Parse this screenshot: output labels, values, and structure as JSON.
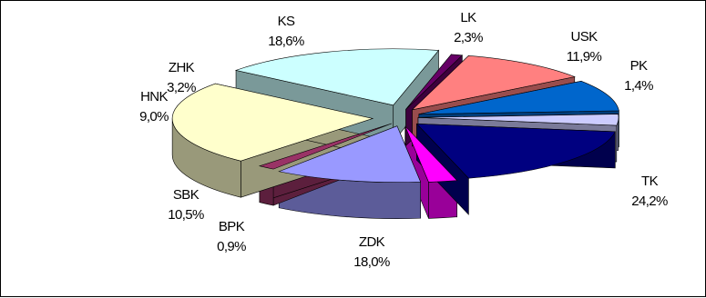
{
  "chart_data": {
    "type": "pie",
    "style": "3d-exploded",
    "title": "",
    "legend": "none",
    "slices": [
      {
        "name": "LK",
        "value": 2.3,
        "label": "2,3%",
        "color": "#ff00ff",
        "side_color": "#990099"
      },
      {
        "name": "USK",
        "value": 11.9,
        "label": "11,9%",
        "color": "#9999ff",
        "side_color": "#5c5c99"
      },
      {
        "name": "PK",
        "value": 1.4,
        "label": "1,4%",
        "color": "#993366",
        "side_color": "#5c1f3d"
      },
      {
        "name": "TK",
        "value": 24.2,
        "label": "24,2%",
        "color": "#ffffcc",
        "side_color": "#99997a"
      },
      {
        "name": "ZDK",
        "value": 18.0,
        "label": "18,0%",
        "color": "#ccffff",
        "side_color": "#7a9999"
      },
      {
        "name": "BPK",
        "value": 0.9,
        "label": "0,9%",
        "color": "#660066",
        "side_color": "#3d003d"
      },
      {
        "name": "SBK",
        "value": 10.5,
        "label": "10,5%",
        "color": "#ff8080",
        "side_color": "#994d4d"
      },
      {
        "name": "HNK",
        "value": 9.0,
        "label": "9,0%",
        "color": "#0066cc",
        "side_color": "#003d7a"
      },
      {
        "name": "ZHK",
        "value": 3.2,
        "label": "3,2%",
        "color": "#ccccff",
        "side_color": "#7a7a99"
      },
      {
        "name": "KS",
        "value": 18.6,
        "label": "18,6%",
        "color": "#000080",
        "side_color": "#00004d"
      }
    ]
  }
}
